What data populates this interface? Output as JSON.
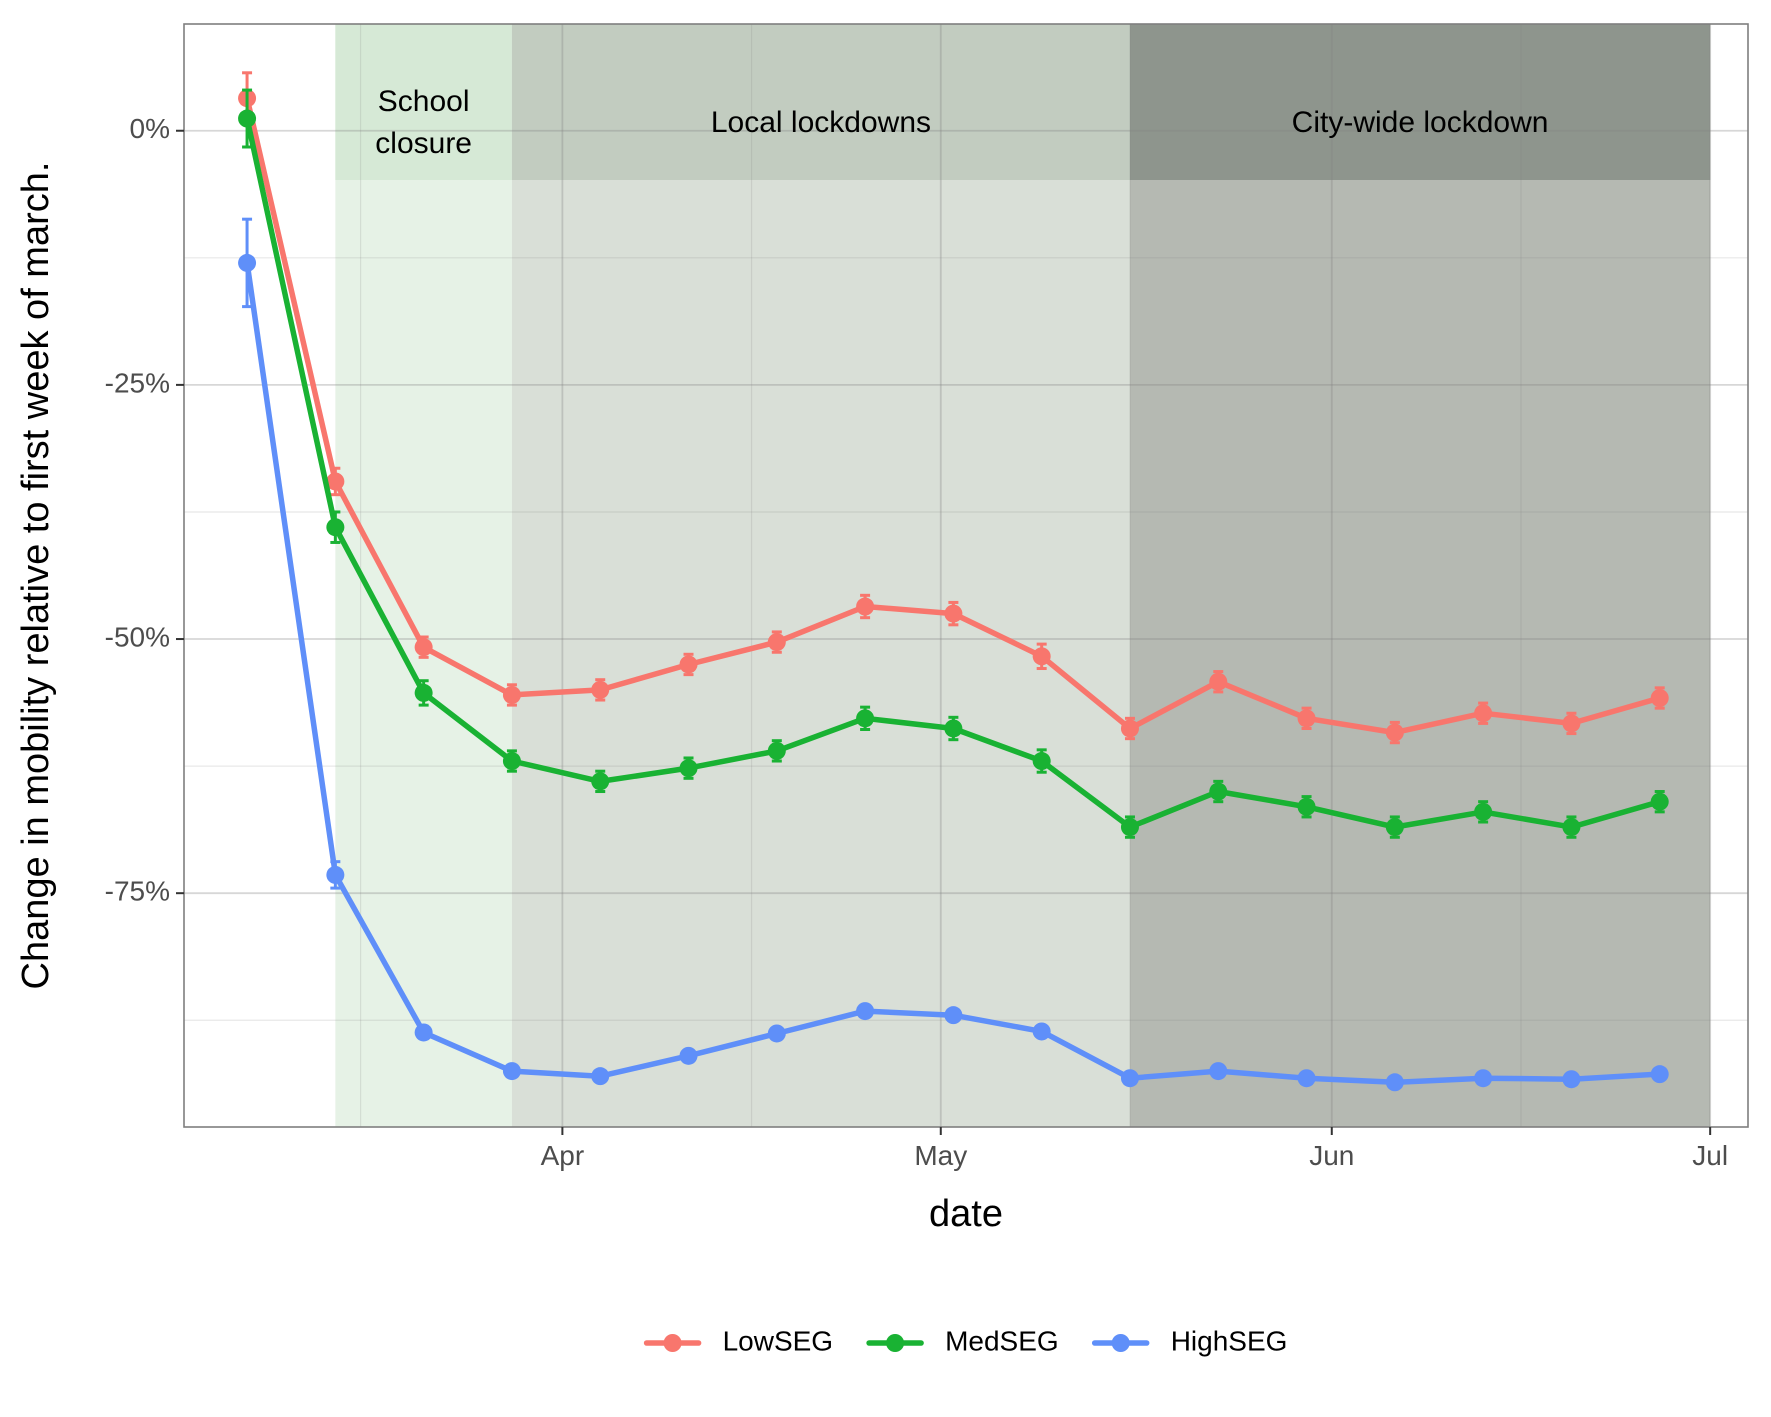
{
  "chart_data": {
    "type": "line",
    "title": "",
    "xlabel": "date",
    "ylabel": "Change in mobility relative to first week of march.",
    "x_tick_labels": [
      "Apr",
      "May",
      "Jun",
      "Jul"
    ],
    "x_tick_dates": [
      "2020-04-01",
      "2020-05-01",
      "2020-06-01",
      "2020-07-01"
    ],
    "x_minor_dates": [
      "2020-03-16",
      "2020-04-16",
      "2020-05-16",
      "2020-06-16"
    ],
    "y_tick_values": [
      0,
      -25,
      -50,
      -75
    ],
    "y_tick_labels": [
      "0%",
      "-25%",
      "-50%",
      "-75%"
    ],
    "y_minor_values": [
      -12.5,
      -37.5,
      -62.5,
      -87.5
    ],
    "xlim": [
      "2020-03-02",
      "2020-07-04"
    ],
    "ylim": [
      -98,
      10.5
    ],
    "grid": true,
    "legend_position": "bottom",
    "phases": [
      {
        "start": "2020-03-14",
        "end": "2020-03-28",
        "label_lines": [
          "School",
          "closure"
        ],
        "fill": "#e6f2e6",
        "band_fill": "#d6e9d6"
      },
      {
        "start": "2020-03-28",
        "end": "2020-05-16",
        "label_lines": [
          "Local lockdowns"
        ],
        "fill": "#d9dfd7",
        "band_fill": "#c2ccc0"
      },
      {
        "start": "2020-05-16",
        "end": "2020-07-01",
        "label_lines": [
          "City-wide lockdown"
        ],
        "fill": "#b5b9b2",
        "band_fill": "#8e958d"
      }
    ],
    "x": [
      "2020-03-07",
      "2020-03-14",
      "2020-03-21",
      "2020-03-28",
      "2020-04-04",
      "2020-04-11",
      "2020-04-18",
      "2020-04-25",
      "2020-05-02",
      "2020-05-09",
      "2020-05-16",
      "2020-05-23",
      "2020-05-30",
      "2020-06-06",
      "2020-06-13",
      "2020-06-20",
      "2020-06-27"
    ],
    "series": [
      {
        "name": "LowSEG",
        "color": "#f8766d",
        "values": [
          3.2,
          -34.5,
          -50.8,
          -55.5,
          -55.0,
          -52.5,
          -50.3,
          -46.8,
          -47.5,
          -51.7,
          -58.8,
          -54.2,
          -57.8,
          -59.2,
          -57.3,
          -58.3,
          -55.8
        ],
        "errors": [
          2.5,
          1.3,
          1.0,
          1.0,
          1.0,
          1.0,
          1.0,
          1.1,
          1.1,
          1.2,
          1.0,
          1.0,
          1.0,
          1.0,
          1.0,
          1.0,
          1.0
        ]
      },
      {
        "name": "MedSEG",
        "color": "#19b233",
        "values": [
          1.2,
          -39.0,
          -55.3,
          -62.0,
          -64.0,
          -62.7,
          -61.0,
          -57.8,
          -58.8,
          -62.0,
          -68.5,
          -65.0,
          -66.5,
          -68.5,
          -67.0,
          -68.5,
          -66.0
        ],
        "errors": [
          2.8,
          1.5,
          1.2,
          1.0,
          1.0,
          1.0,
          1.0,
          1.1,
          1.1,
          1.1,
          1.0,
          1.0,
          1.0,
          1.0,
          1.0,
          1.0,
          1.0
        ]
      },
      {
        "name": "HighSEG",
        "color": "#5f8ff9",
        "values": [
          -13.0,
          -73.2,
          -88.7,
          -92.5,
          -93.0,
          -91.0,
          -88.8,
          -86.6,
          -87.0,
          -88.6,
          -93.2,
          -92.5,
          -93.2,
          -93.6,
          -93.2,
          -93.3,
          -92.8
        ],
        "errors": [
          4.3,
          1.3,
          0.6,
          0.5,
          0.5,
          0.5,
          0.5,
          0.5,
          0.5,
          0.5,
          0.5,
          0.5,
          0.5,
          0.5,
          0.5,
          0.5,
          0.5
        ]
      }
    ]
  }
}
